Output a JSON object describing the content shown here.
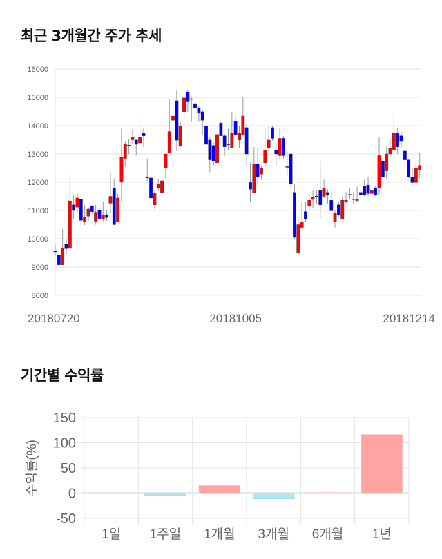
{
  "section1": {
    "title": "최근 3개월간 주가 추세"
  },
  "section2": {
    "title": "기간별 수익률"
  },
  "colors": {
    "up": "#ff0000",
    "down": "#0000ff",
    "wick": "#999999",
    "bar_pos": "#ffa3a3",
    "bar_neg": "#b0e8f2"
  },
  "chart_data": [
    {
      "type": "candlestick",
      "title": "최근 3개월간 주가 추세",
      "ylim": [
        8000,
        16000
      ],
      "yticks": [
        8000,
        9000,
        10000,
        11000,
        12000,
        13000,
        14000,
        15000,
        16000
      ],
      "xticks": [
        {
          "index": 0,
          "label": "20180720"
        },
        {
          "index": 49,
          "label": "20181005"
        },
        {
          "index": 96,
          "label": "20181214"
        }
      ],
      "grid": true,
      "ohlc": [
        [
          9560,
          9800,
          9380,
          9540
        ],
        [
          9420,
          9500,
          9080,
          9080
        ],
        [
          9080,
          10350,
          9080,
          9680
        ],
        [
          9810,
          10000,
          9460,
          9650
        ],
        [
          9660,
          12290,
          9640,
          11340
        ],
        [
          11200,
          11520,
          10710,
          11000
        ],
        [
          11120,
          11600,
          10960,
          11440
        ],
        [
          11400,
          11420,
          10490,
          10650
        ],
        [
          10600,
          11200,
          10490,
          10750
        ],
        [
          10800,
          11120,
          10630,
          11050
        ],
        [
          11150,
          11200,
          10880,
          10960
        ],
        [
          10620,
          11200,
          10500,
          10940
        ],
        [
          11000,
          11100,
          10700,
          10710
        ],
        [
          10700,
          11320,
          10620,
          10850
        ],
        [
          10850,
          11000,
          10640,
          10750
        ],
        [
          11260,
          12350,
          10900,
          11500
        ],
        [
          11790,
          12130,
          10500,
          10500
        ],
        [
          10600,
          11600,
          10600,
          11440
        ],
        [
          12000,
          13890,
          11300,
          12890
        ],
        [
          12840,
          13450,
          12540,
          13340
        ],
        [
          13310,
          13530,
          13000,
          13290
        ],
        [
          13500,
          13840,
          13340,
          13590
        ],
        [
          13490,
          13530,
          12940,
          13340
        ],
        [
          13390,
          14240,
          13100,
          13590
        ],
        [
          13730,
          13890,
          13240,
          13640
        ],
        [
          12190,
          12840,
          12050,
          12150
        ],
        [
          12150,
          12500,
          11000,
          11440
        ],
        [
          11200,
          11690,
          11050,
          11600
        ],
        [
          11790,
          12130,
          11690,
          11940
        ],
        [
          11640,
          12090,
          11500,
          12050
        ],
        [
          12500,
          13000,
          12140,
          13000
        ],
        [
          13040,
          14940,
          13040,
          13790
        ],
        [
          14190,
          14700,
          13950,
          14340
        ],
        [
          14880,
          15250,
          13100,
          13480
        ],
        [
          13290,
          14130,
          13240,
          13990
        ],
        [
          14480,
          15340,
          14190,
          14980
        ],
        [
          15190,
          15250,
          14480,
          14840
        ],
        [
          14950,
          15030,
          14130,
          14930
        ],
        [
          14780,
          15030,
          14520,
          14630
        ],
        [
          14630,
          14680,
          14130,
          14440
        ],
        [
          14490,
          14550,
          13690,
          14190
        ],
        [
          13990,
          14340,
          13340,
          13340
        ],
        [
          13490,
          13590,
          12350,
          12790
        ],
        [
          13300,
          13400,
          12590,
          12740
        ],
        [
          12690,
          13690,
          12690,
          13690
        ],
        [
          14090,
          14120,
          13640,
          13640
        ],
        [
          13640,
          13710,
          12940,
          13250
        ],
        [
          13350,
          13890,
          13140,
          13330
        ],
        [
          13200,
          14490,
          13200,
          13730
        ],
        [
          14140,
          14340,
          13640,
          13690
        ],
        [
          13490,
          13990,
          13200,
          13730
        ],
        [
          13690,
          15030,
          13640,
          14340
        ],
        [
          13930,
          14070,
          12590,
          13000
        ],
        [
          11990,
          12690,
          11300,
          11750
        ],
        [
          11640,
          13240,
          11640,
          12640
        ],
        [
          12640,
          13200,
          11900,
          12190
        ],
        [
          12290,
          12590,
          12090,
          12500
        ],
        [
          12690,
          13930,
          12590,
          13140
        ],
        [
          13200,
          13990,
          13140,
          13490
        ],
        [
          13930,
          13990,
          13450,
          13550
        ],
        [
          13140,
          13340,
          12590,
          13000
        ],
        [
          12940,
          13890,
          12800,
          13550
        ],
        [
          13550,
          13640,
          12840,
          12940
        ],
        [
          12550,
          13100,
          12250,
          12530
        ],
        [
          13000,
          13000,
          11850,
          11940
        ],
        [
          11640,
          11940,
          9980,
          10050
        ],
        [
          9510,
          10790,
          9510,
          10500
        ],
        [
          10400,
          11300,
          10400,
          10600
        ],
        [
          10960,
          11300,
          10600,
          10700
        ],
        [
          11150,
          11560,
          11000,
          11360
        ],
        [
          11390,
          11700,
          11090,
          11460
        ],
        [
          11510,
          11700,
          11250,
          11490
        ],
        [
          11700,
          12740,
          10700,
          11200
        ],
        [
          11500,
          12090,
          11440,
          11790
        ],
        [
          11640,
          11750,
          11250,
          11560
        ],
        [
          11360,
          11700,
          10960,
          10990
        ],
        [
          10600,
          10990,
          10400,
          10900
        ],
        [
          11200,
          11300,
          10790,
          10850
        ],
        [
          10700,
          11500,
          10700,
          11360
        ],
        [
          11300,
          11650,
          11250,
          11360
        ],
        [
          11570,
          11800,
          11400,
          11550
        ],
        [
          11410,
          11650,
          11250,
          11390
        ],
        [
          11350,
          11840,
          11300,
          11400
        ],
        [
          11640,
          11790,
          11300,
          11560
        ],
        [
          11850,
          12090,
          11500,
          11560
        ],
        [
          11900,
          12190,
          11500,
          11600
        ],
        [
          11600,
          11770,
          11460,
          11700
        ],
        [
          11790,
          11850,
          11500,
          11560
        ],
        [
          11790,
          13590,
          11560,
          12940
        ],
        [
          12740,
          13000,
          11940,
          12190
        ],
        [
          12400,
          13240,
          12140,
          13000
        ],
        [
          13000,
          13490,
          12840,
          13200
        ],
        [
          13140,
          14440,
          13000,
          13730
        ],
        [
          13730,
          13930,
          13000,
          13250
        ],
        [
          13640,
          13790,
          13200,
          13440
        ],
        [
          13100,
          13590,
          12500,
          12790
        ],
        [
          12790,
          12790,
          12140,
          12190
        ],
        [
          12190,
          12500,
          11850,
          11990
        ],
        [
          11990,
          12640,
          11990,
          12500
        ],
        [
          12440,
          13050,
          12140,
          12590
        ]
      ]
    },
    {
      "type": "bar",
      "title": "기간별 수익률",
      "ylabel": "수익률(%)",
      "ylim": [
        -50,
        150
      ],
      "yticks": [
        -50,
        0,
        50,
        100,
        150
      ],
      "categories": [
        "1일",
        "1주일",
        "1개월",
        "3개월",
        "6개월",
        "1년"
      ],
      "values": [
        0,
        -4,
        15,
        -11,
        1,
        116
      ],
      "grid": true
    }
  ]
}
